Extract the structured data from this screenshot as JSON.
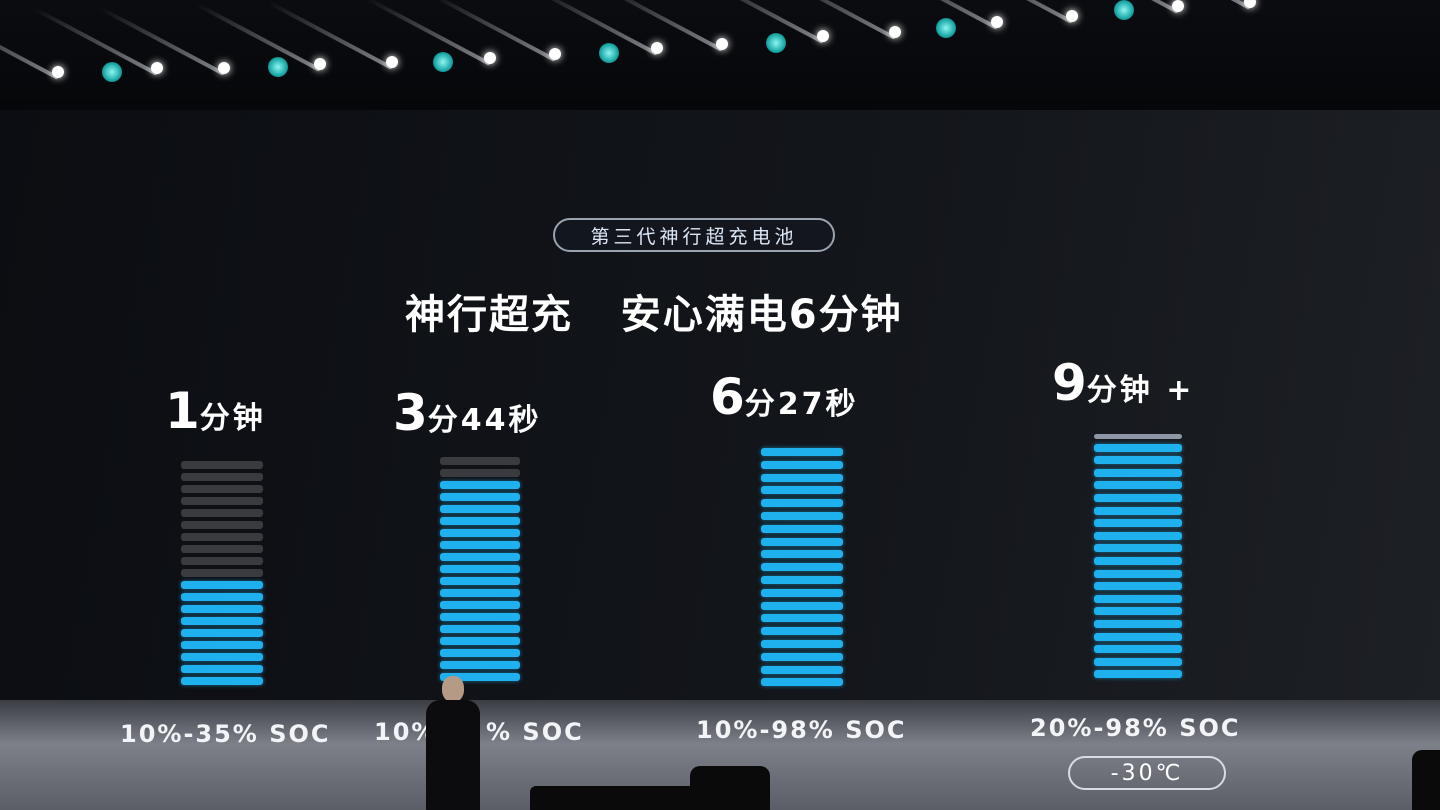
{
  "slide": {
    "badge": "第三代神行超充电池",
    "headline": "神行超充   安心满电6分钟",
    "colors": {
      "charged_segment": "#1fb1ee",
      "empty_segment": "#3a3b3f",
      "background": "#0b0d12"
    },
    "bars": [
      {
        "time_big": "1",
        "time_small": "分钟",
        "soc": "10%-35% SOC",
        "total_segments": 19,
        "filled_segments": 9,
        "cap": false
      },
      {
        "time_big": "3",
        "time_small": "分44秒",
        "soc_left": "10%",
        "soc_right": "% SOC",
        "total_segments": 19,
        "filled_segments": 17,
        "cap": false
      },
      {
        "time_big": "6",
        "time_small": "分27秒",
        "soc": "10%-98% SOC",
        "total_segments": 19,
        "filled_segments": 19,
        "cap": false
      },
      {
        "time_big": "9",
        "time_small": "分钟 +",
        "soc": "20%-98% SOC",
        "total_segments": 19,
        "filled_segments": 19,
        "cap": true
      }
    ],
    "temperature": "-30℃"
  }
}
